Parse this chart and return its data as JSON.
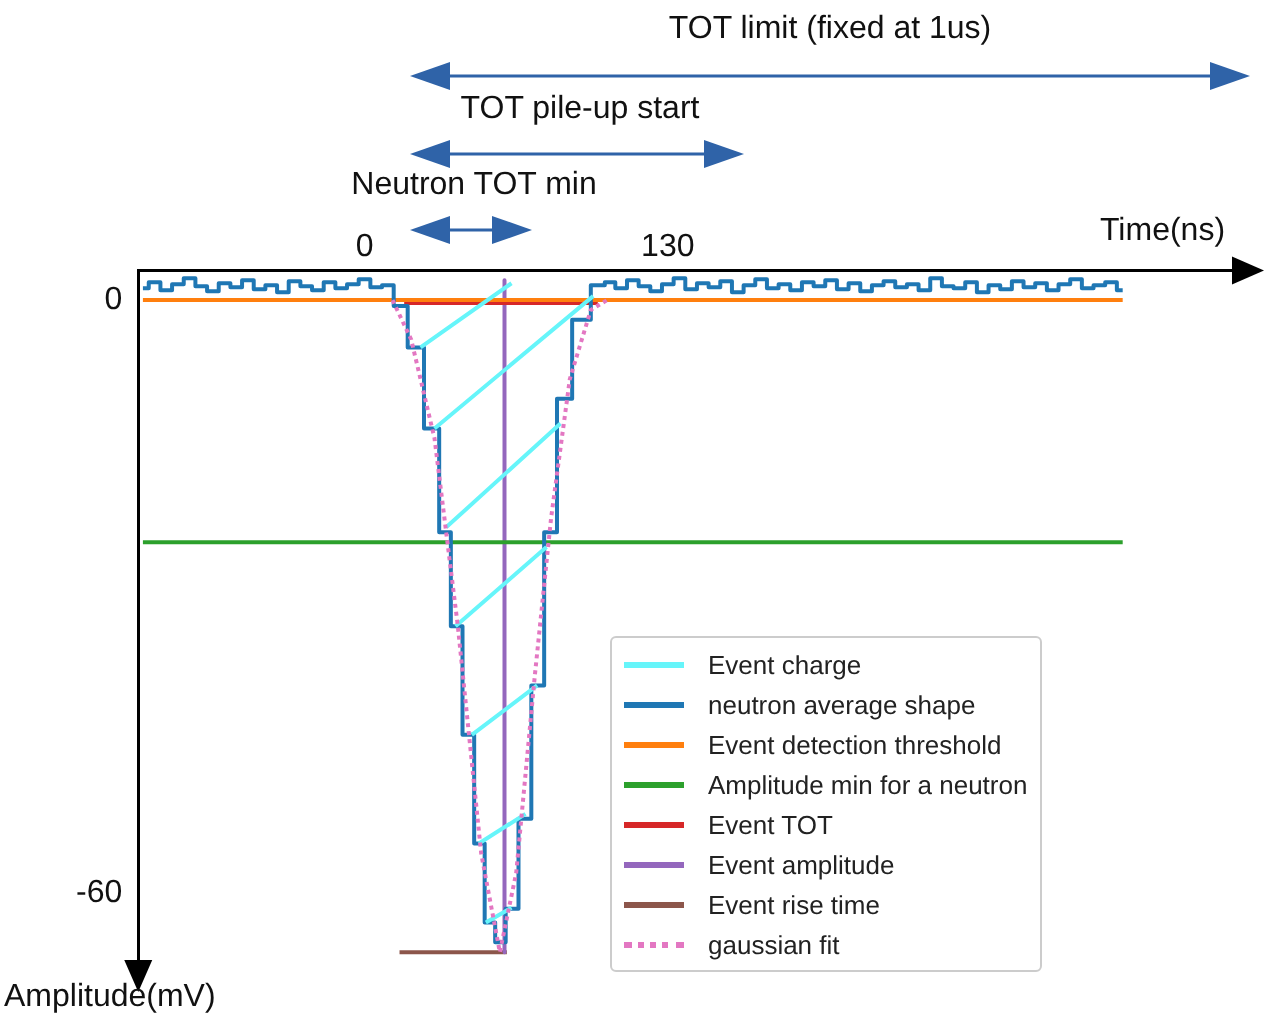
{
  "chart_data": {
    "type": "line",
    "xlabel": "Time(ns)",
    "ylabel": "Amplitude(mV)",
    "annotations": [
      "TOT limit (fixed at 1us)",
      "TOT pile-up start",
      "Neutron TOT min"
    ],
    "xlim": [
      -97,
      377
    ],
    "xticks": [
      0,
      130
    ],
    "ylim": [
      -68,
      3
    ],
    "yticks": [
      0,
      -60
    ],
    "grid": false,
    "legend": "bottom right",
    "marker": "none",
    "series": [
      {
        "name": "Event charge",
        "color": "#66f5fa",
        "x": [
          24,
          63,
          null,
          30,
          98,
          null,
          35,
          84,
          null,
          39,
          78,
          null,
          46,
          74,
          null,
          49,
          69,
          null,
          52,
          63
        ],
        "values": [
          -4.8,
          1.7,
          null,
          -13,
          0.4,
          null,
          -23,
          -12.5,
          null,
          -33,
          -25,
          null,
          -44,
          -39,
          null,
          -55,
          -52,
          null,
          -63,
          -61.5
        ]
      },
      {
        "name": "neutron average shape",
        "type": "step",
        "color": "#1f77b4",
        "x": [
          -95,
          -90,
          -85,
          -80,
          -75,
          -70,
          -65,
          -60,
          -55,
          -50,
          -45,
          -40,
          -35,
          -30,
          -25,
          -20,
          -15,
          -10,
          -5,
          0,
          5,
          10,
          15,
          22,
          29,
          35,
          39,
          45,
          49,
          54,
          58,
          63,
          69,
          74,
          80,
          85,
          93,
          101,
          105,
          110,
          115,
          120,
          125,
          130,
          135,
          140,
          145,
          150,
          155,
          160,
          165,
          170,
          175,
          180,
          185,
          190,
          195,
          200,
          205,
          210,
          215,
          220,
          225,
          230,
          235,
          240,
          245,
          250,
          255,
          260,
          265,
          270,
          275,
          280,
          285,
          290,
          295,
          300,
          305,
          310,
          315,
          320,
          325
        ],
        "values": [
          1.2,
          1.8,
          1.0,
          1.6,
          2.2,
          1.4,
          0.9,
          1.7,
          1.3,
          2.0,
          1.1,
          1.5,
          0.8,
          1.9,
          1.4,
          1.0,
          1.8,
          1.2,
          1.6,
          2.1,
          1.3,
          1.5,
          -0.6,
          -4.8,
          -13,
          -23.5,
          -33,
          -44,
          -55,
          -63,
          -65,
          -61.6,
          -52.5,
          -39,
          -23.5,
          -10,
          -2,
          1.5,
          1.8,
          1.2,
          2.0,
          1.4,
          0.9,
          1.6,
          2.2,
          1.1,
          1.7,
          1.3,
          1.9,
          0.8,
          1.5,
          2.1,
          1.2,
          1.6,
          1.0,
          1.8,
          1.4,
          2.0,
          1.1,
          1.7,
          0.9,
          1.5,
          1.9,
          1.3,
          1.6,
          1.0,
          2.2,
          1.4,
          1.2,
          1.8,
          0.8,
          1.5,
          1.1,
          1.9,
          1.3,
          1.7,
          1.0,
          1.6,
          2.1,
          1.2,
          1.5,
          1.8,
          1.0
        ]
      },
      {
        "name": "Event detection threshold",
        "color": "#ff7f0e",
        "x": [
          -95,
          325
        ],
        "values": [
          0,
          0
        ]
      },
      {
        "name": "Amplitude min for a neutron",
        "color": "#2ca02c",
        "x": [
          -95,
          325
        ],
        "values": [
          -24.5,
          -24.5
        ]
      },
      {
        "name": "Event TOT",
        "color": "#d62728",
        "x": [
          17,
          100
        ],
        "values": [
          -0.3,
          -0.3
        ]
      },
      {
        "name": "Event amplitude",
        "color": "#9467bd",
        "x": [
          60,
          60
        ],
        "values": [
          2,
          -66
        ]
      },
      {
        "name": "Event rise time",
        "color": "#8c564b",
        "x": [
          15,
          61
        ],
        "values": [
          -66,
          -66
        ]
      },
      {
        "name": "gaussian fit",
        "color": "#e377c2",
        "line_style": "dotted",
        "x": [
          12,
          20,
          30,
          40,
          50,
          58,
          65,
          73,
          80,
          88,
          97,
          104
        ],
        "values": [
          0,
          -4,
          -14,
          -33,
          -56,
          -66,
          -58,
          -38,
          -22,
          -8,
          -1,
          0
        ]
      }
    ]
  }
}
